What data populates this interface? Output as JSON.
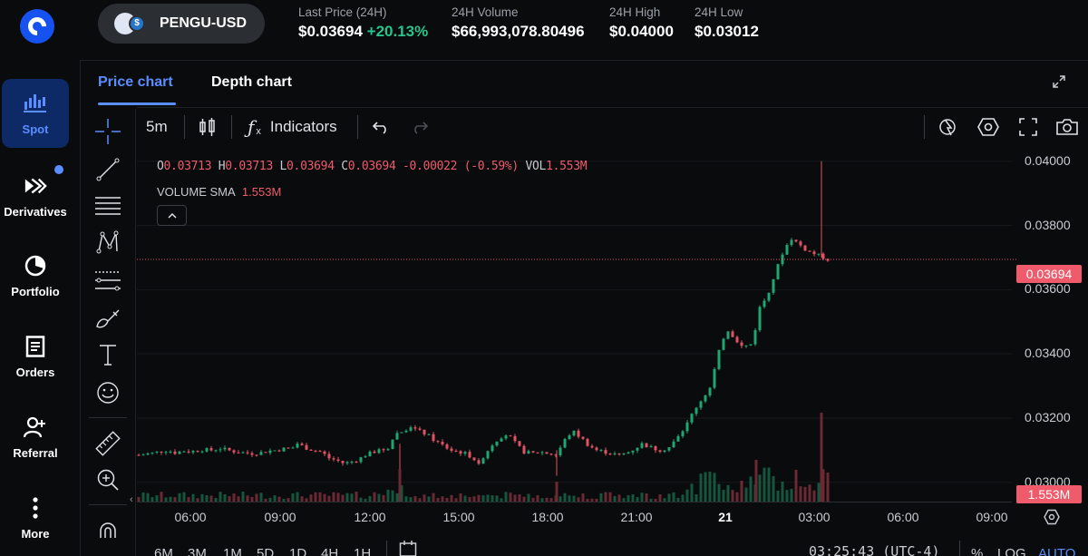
{
  "nav": {
    "items": [
      {
        "label": "Spot",
        "icon": "spot-chart-icon",
        "active": true
      },
      {
        "label": "Derivatives",
        "icon": "derivatives-icon",
        "badge": true
      },
      {
        "label": "Portfolio",
        "icon": "pie-chart-icon"
      },
      {
        "label": "Orders",
        "icon": "document-icon"
      },
      {
        "label": "Referral",
        "icon": "add-user-icon"
      },
      {
        "label": "More",
        "icon": "more-vertical-icon"
      }
    ]
  },
  "header": {
    "pair": "PENGU-USD",
    "stats": [
      {
        "label": "Last Price (24H)",
        "value": "$0.03694",
        "change": "+20.13%"
      },
      {
        "label": "24H Volume",
        "value": "$66,993,078.80496"
      },
      {
        "label": "24H High",
        "value": "$0.04000"
      },
      {
        "label": "24H Low",
        "value": "$0.03012"
      }
    ]
  },
  "tabs": [
    {
      "label": "Price chart",
      "active": true
    },
    {
      "label": "Depth chart",
      "active": false
    }
  ],
  "toolbar": {
    "interval": "5m",
    "indicators_label": "Indicators",
    "fx_label": "f"
  },
  "legend": {
    "o_key": "O",
    "o_val": "0.03713",
    "h_key": "H",
    "h_val": "0.03713",
    "l_key": "L",
    "l_val": "0.03694",
    "c_key": "C",
    "c_val": "0.03694",
    "chg": "-0.00022 (-0.59%)",
    "vol_key": "VOL",
    "vol_val": "1.553M",
    "sma_label": "VOLUME SMA",
    "sma_val": "1.553M"
  },
  "chart_data": {
    "type": "candlestick",
    "y_ticks": [
      "0.04000",
      "0.03800",
      "0.03600",
      "0.03400",
      "0.03200",
      "0.03000"
    ],
    "ylim": [
      0.0294,
      0.0405
    ],
    "x_ticks": [
      "06:00",
      "09:00",
      "12:00",
      "15:00",
      "18:00",
      "21:00",
      "21",
      "03:00",
      "06:00",
      "09:00"
    ],
    "last_price": "0.03694",
    "last_volume": "1.553M",
    "close_path": [
      [
        0,
        0.03085
      ],
      [
        6,
        0.0309
      ],
      [
        10,
        0.03095
      ],
      [
        14,
        0.031
      ],
      [
        18,
        0.03092
      ],
      [
        22,
        0.03098
      ],
      [
        26,
        0.03095
      ],
      [
        30,
        0.03102
      ],
      [
        36,
        0.031
      ],
      [
        40,
        0.03106
      ],
      [
        44,
        0.031
      ],
      [
        48,
        0.03095
      ],
      [
        52,
        0.03092
      ],
      [
        56,
        0.0309
      ],
      [
        60,
        0.03092
      ],
      [
        64,
        0.03098
      ],
      [
        68,
        0.031
      ],
      [
        72,
        0.03105
      ],
      [
        76,
        0.03108
      ],
      [
        78,
        0.03122
      ],
      [
        82,
        0.03108
      ],
      [
        86,
        0.031
      ],
      [
        90,
        0.03095
      ],
      [
        94,
        0.03075
      ],
      [
        98,
        0.03068
      ],
      [
        100,
        0.0306
      ],
      [
        104,
        0.03062
      ],
      [
        108,
        0.0307
      ],
      [
        112,
        0.03085
      ],
      [
        116,
        0.03095
      ],
      [
        120,
        0.031
      ],
      [
        124,
        0.0311
      ],
      [
        126,
        0.0315
      ],
      [
        130,
        0.03158
      ],
      [
        134,
        0.03175
      ],
      [
        138,
        0.0316
      ],
      [
        142,
        0.0315
      ],
      [
        146,
        0.0313
      ],
      [
        150,
        0.03115
      ],
      [
        154,
        0.031
      ],
      [
        158,
        0.03095
      ],
      [
        162,
        0.03088
      ],
      [
        166,
        0.0307
      ],
      [
        168,
        0.0305
      ],
      [
        170,
        0.0308
      ],
      [
        174,
        0.03115
      ],
      [
        178,
        0.0314
      ],
      [
        182,
        0.0315
      ],
      [
        186,
        0.0312
      ],
      [
        190,
        0.03095
      ],
      [
        194,
        0.0309
      ],
      [
        198,
        0.03095
      ],
      [
        202,
        0.0309
      ],
      [
        206,
        0.03085
      ],
      [
        210,
        0.0313
      ],
      [
        214,
        0.0316
      ],
      [
        218,
        0.0314
      ],
      [
        222,
        0.03115
      ],
      [
        226,
        0.031
      ],
      [
        230,
        0.03095
      ],
      [
        234,
        0.03088
      ],
      [
        238,
        0.03085
      ],
      [
        242,
        0.03095
      ],
      [
        246,
        0.0311
      ],
      [
        248,
        0.0312
      ],
      [
        250,
        0.03115
      ],
      [
        254,
        0.03105
      ],
      [
        258,
        0.031
      ],
      [
        262,
        0.0311
      ],
      [
        266,
        0.0314
      ],
      [
        270,
        0.03175
      ],
      [
        274,
        0.03225
      ],
      [
        278,
        0.0326
      ],
      [
        282,
        0.03295
      ],
      [
        286,
        0.034
      ],
      [
        288,
        0.0344
      ],
      [
        290,
        0.0348
      ],
      [
        294,
        0.0345
      ],
      [
        298,
        0.0342
      ],
      [
        302,
        0.0343
      ],
      [
        304,
        0.0347
      ],
      [
        306,
        0.0354
      ],
      [
        310,
        0.0358
      ],
      [
        314,
        0.0365
      ],
      [
        318,
        0.0372
      ],
      [
        322,
        0.0376
      ],
      [
        326,
        0.0374
      ],
      [
        330,
        0.0372
      ],
      [
        334,
        0.0371
      ],
      [
        338,
        0.037
      ],
      [
        340,
        0.03694
      ]
    ]
  },
  "range_buttons": [
    "6M",
    "3M",
    "1M",
    "5D",
    "1D",
    "4H",
    "1H"
  ],
  "footer": {
    "clock": "03:25:43 (UTC-4)",
    "percent": "%",
    "log": "LOG",
    "auto": "AUTO"
  }
}
